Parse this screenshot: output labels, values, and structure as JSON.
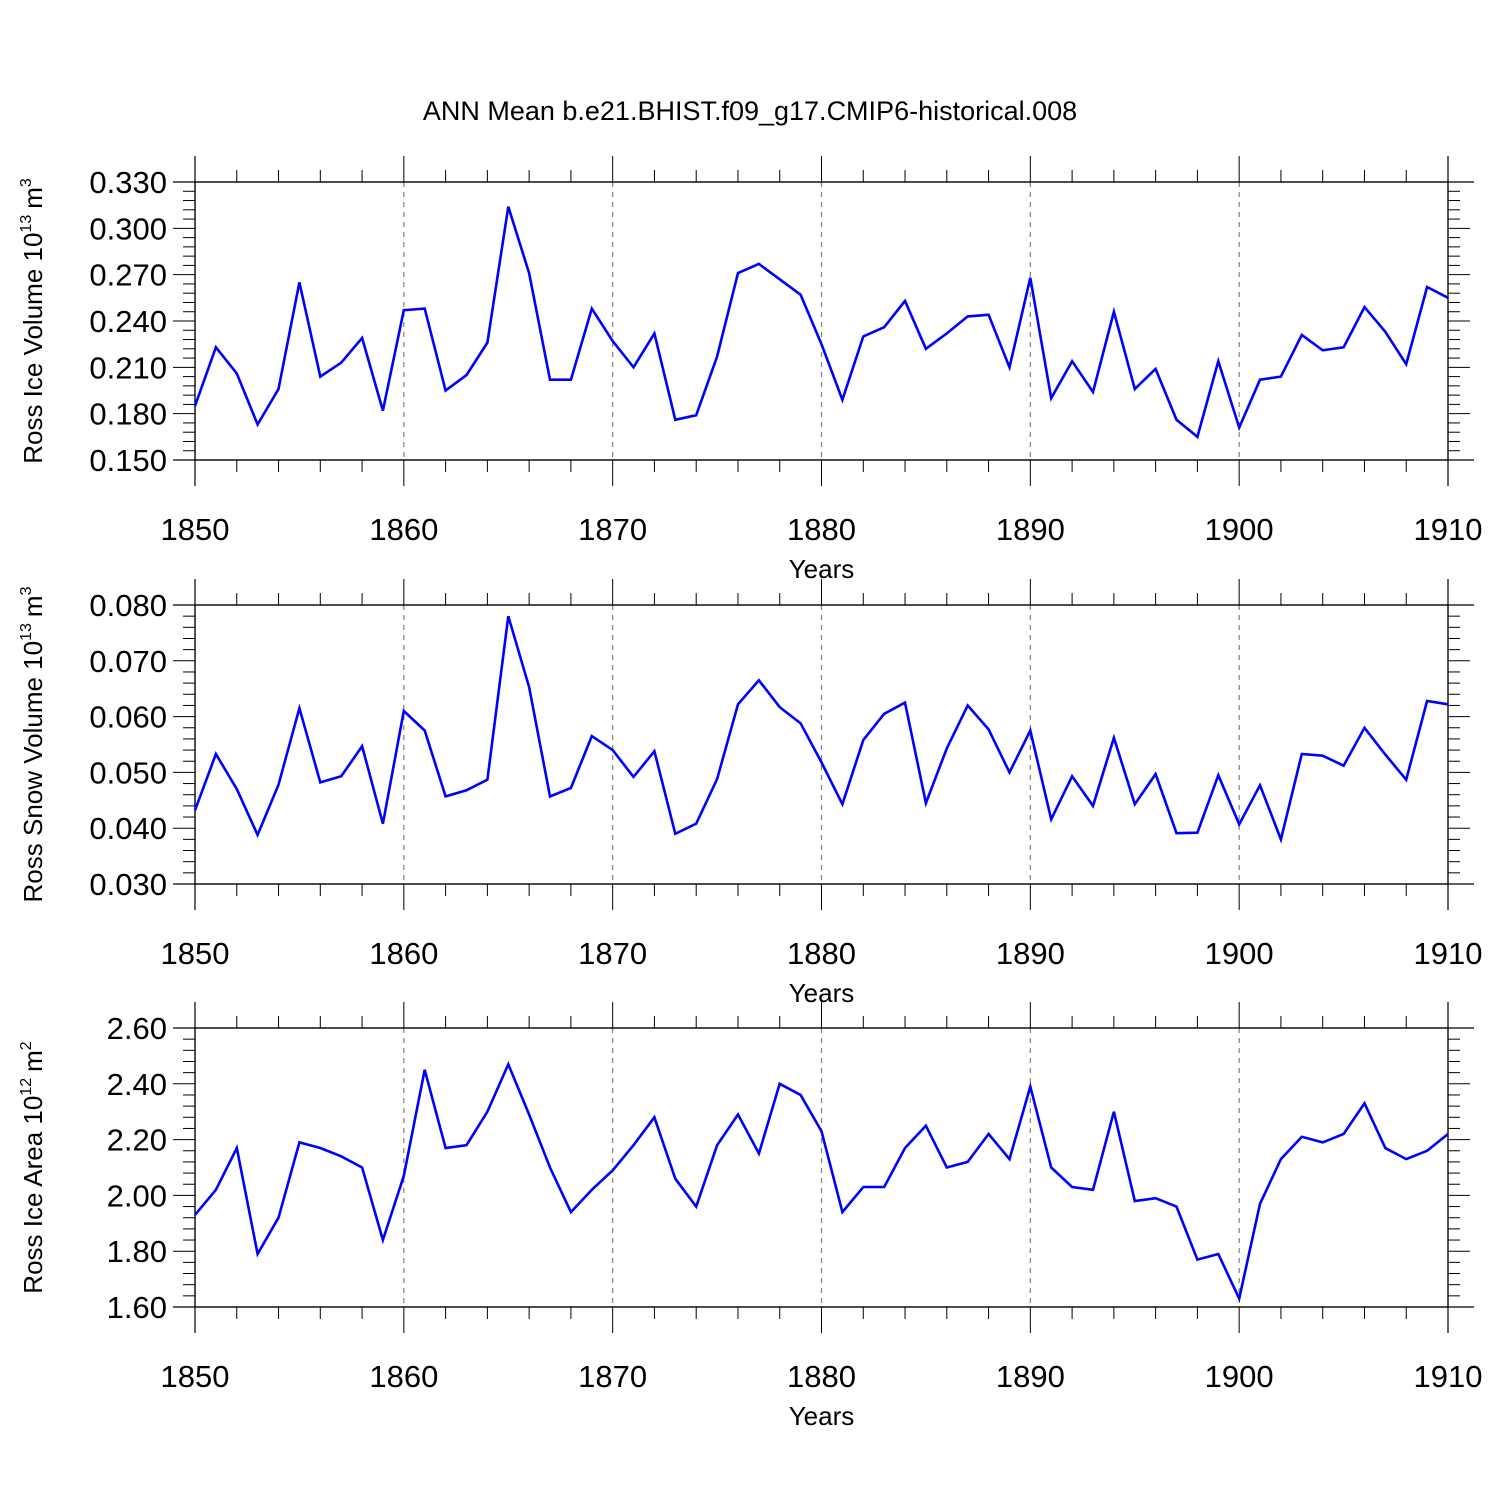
{
  "title": "ANN Mean b.e21.BHIST.f09_g17.CMIP6-historical.008",
  "colors": {
    "line": "#0000ff",
    "axis": "#000000",
    "grid": "#808080"
  },
  "chart_data": [
    {
      "type": "line",
      "ylabel_main": "Ross Ice Volume 10",
      "ylabel_exp": "13",
      "ylabel_unit": "m",
      "ylabel_unit_exp": "3",
      "xlabel": "Years",
      "xlim": [
        1850,
        1910
      ],
      "ylim": [
        0.15,
        0.33
      ],
      "yticks": [
        0.15,
        0.18,
        0.21,
        0.24,
        0.27,
        0.3,
        0.33
      ],
      "ytick_labels": [
        "0.150",
        "0.180",
        "0.210",
        "0.240",
        "0.270",
        "0.300",
        "0.330"
      ],
      "xticks": [
        1850,
        1860,
        1870,
        1880,
        1890,
        1900,
        1910
      ],
      "xtick_labels": [
        "1850",
        "1860",
        "1870",
        "1880",
        "1890",
        "1900",
        "1910"
      ],
      "x_start": 1850,
      "values": [
        0.185,
        0.223,
        0.206,
        0.173,
        0.196,
        0.265,
        0.204,
        0.213,
        0.229,
        0.182,
        0.247,
        0.248,
        0.195,
        0.205,
        0.226,
        0.314,
        0.271,
        0.202,
        0.202,
        0.248,
        0.227,
        0.21,
        0.232,
        0.176,
        0.179,
        0.217,
        0.271,
        0.277,
        0.267,
        0.257,
        0.225,
        0.189,
        0.23,
        0.236,
        0.253,
        0.222,
        0.232,
        0.243,
        0.244,
        0.21,
        0.268,
        0.19,
        0.214,
        0.194,
        0.246,
        0.196,
        0.209,
        0.176,
        0.165,
        0.214,
        0.171,
        0.202,
        0.204,
        0.231,
        0.221,
        0.223,
        0.249,
        0.233,
        0.212,
        0.262,
        0.255
      ]
    },
    {
      "type": "line",
      "ylabel_main": "Ross Snow Volume 10",
      "ylabel_exp": "13",
      "ylabel_unit": "m",
      "ylabel_unit_exp": "3",
      "xlabel": "Years",
      "xlim": [
        1850,
        1910
      ],
      "ylim": [
        0.03,
        0.08
      ],
      "yticks": [
        0.03,
        0.04,
        0.05,
        0.06,
        0.07,
        0.08
      ],
      "ytick_labels": [
        "0.030",
        "0.040",
        "0.050",
        "0.060",
        "0.070",
        "0.080"
      ],
      "xticks": [
        1850,
        1860,
        1870,
        1880,
        1890,
        1900,
        1910
      ],
      "xtick_labels": [
        "1850",
        "1860",
        "1870",
        "1880",
        "1890",
        "1900",
        "1910"
      ],
      "x_start": 1850,
      "values": [
        0.0432,
        0.0533,
        0.047,
        0.0388,
        0.0478,
        0.0615,
        0.0482,
        0.0493,
        0.0547,
        0.0408,
        0.061,
        0.0575,
        0.0457,
        0.0468,
        0.0487,
        0.078,
        0.0653,
        0.0457,
        0.0472,
        0.0565,
        0.054,
        0.0492,
        0.0538,
        0.039,
        0.0408,
        0.0488,
        0.0622,
        0.0665,
        0.0617,
        0.0588,
        0.0518,
        0.0443,
        0.0558,
        0.0605,
        0.0625,
        0.0445,
        0.0543,
        0.062,
        0.0577,
        0.05,
        0.0575,
        0.0416,
        0.0493,
        0.044,
        0.0562,
        0.0443,
        0.0497,
        0.0391,
        0.0392,
        0.0495,
        0.0407,
        0.0477,
        0.038,
        0.0533,
        0.053,
        0.0512,
        0.058,
        0.0532,
        0.0487,
        0.0628,
        0.0622
      ]
    },
    {
      "type": "line",
      "ylabel_main": "Ross Ice Area 10",
      "ylabel_exp": "12",
      "ylabel_unit": "m",
      "ylabel_unit_exp": "2",
      "xlabel": "Years",
      "xlim": [
        1850,
        1910
      ],
      "ylim": [
        1.6,
        2.6
      ],
      "yticks": [
        1.6,
        1.8,
        2.0,
        2.2,
        2.4,
        2.6
      ],
      "ytick_labels": [
        "1.60",
        "1.80",
        "2.00",
        "2.20",
        "2.40",
        "2.60"
      ],
      "xticks": [
        1850,
        1860,
        1870,
        1880,
        1890,
        1900,
        1910
      ],
      "xtick_labels": [
        "1850",
        "1860",
        "1870",
        "1880",
        "1890",
        "1900",
        "1910"
      ],
      "x_start": 1850,
      "values": [
        1.93,
        2.02,
        2.17,
        1.79,
        1.92,
        2.19,
        2.17,
        2.14,
        2.1,
        1.84,
        2.07,
        2.45,
        2.17,
        2.18,
        2.3,
        2.47,
        2.29,
        2.1,
        1.94,
        2.02,
        2.09,
        2.18,
        2.28,
        2.06,
        1.96,
        2.18,
        2.29,
        2.15,
        2.4,
        2.36,
        2.23,
        1.94,
        2.03,
        2.03,
        2.17,
        2.25,
        2.1,
        2.12,
        2.22,
        2.13,
        2.39,
        2.1,
        2.03,
        2.02,
        2.3,
        1.98,
        1.99,
        1.96,
        1.77,
        1.79,
        1.63,
        1.97,
        2.13,
        2.21,
        2.19,
        2.22,
        2.33,
        2.17,
        2.13,
        2.16,
        2.22
      ]
    }
  ]
}
